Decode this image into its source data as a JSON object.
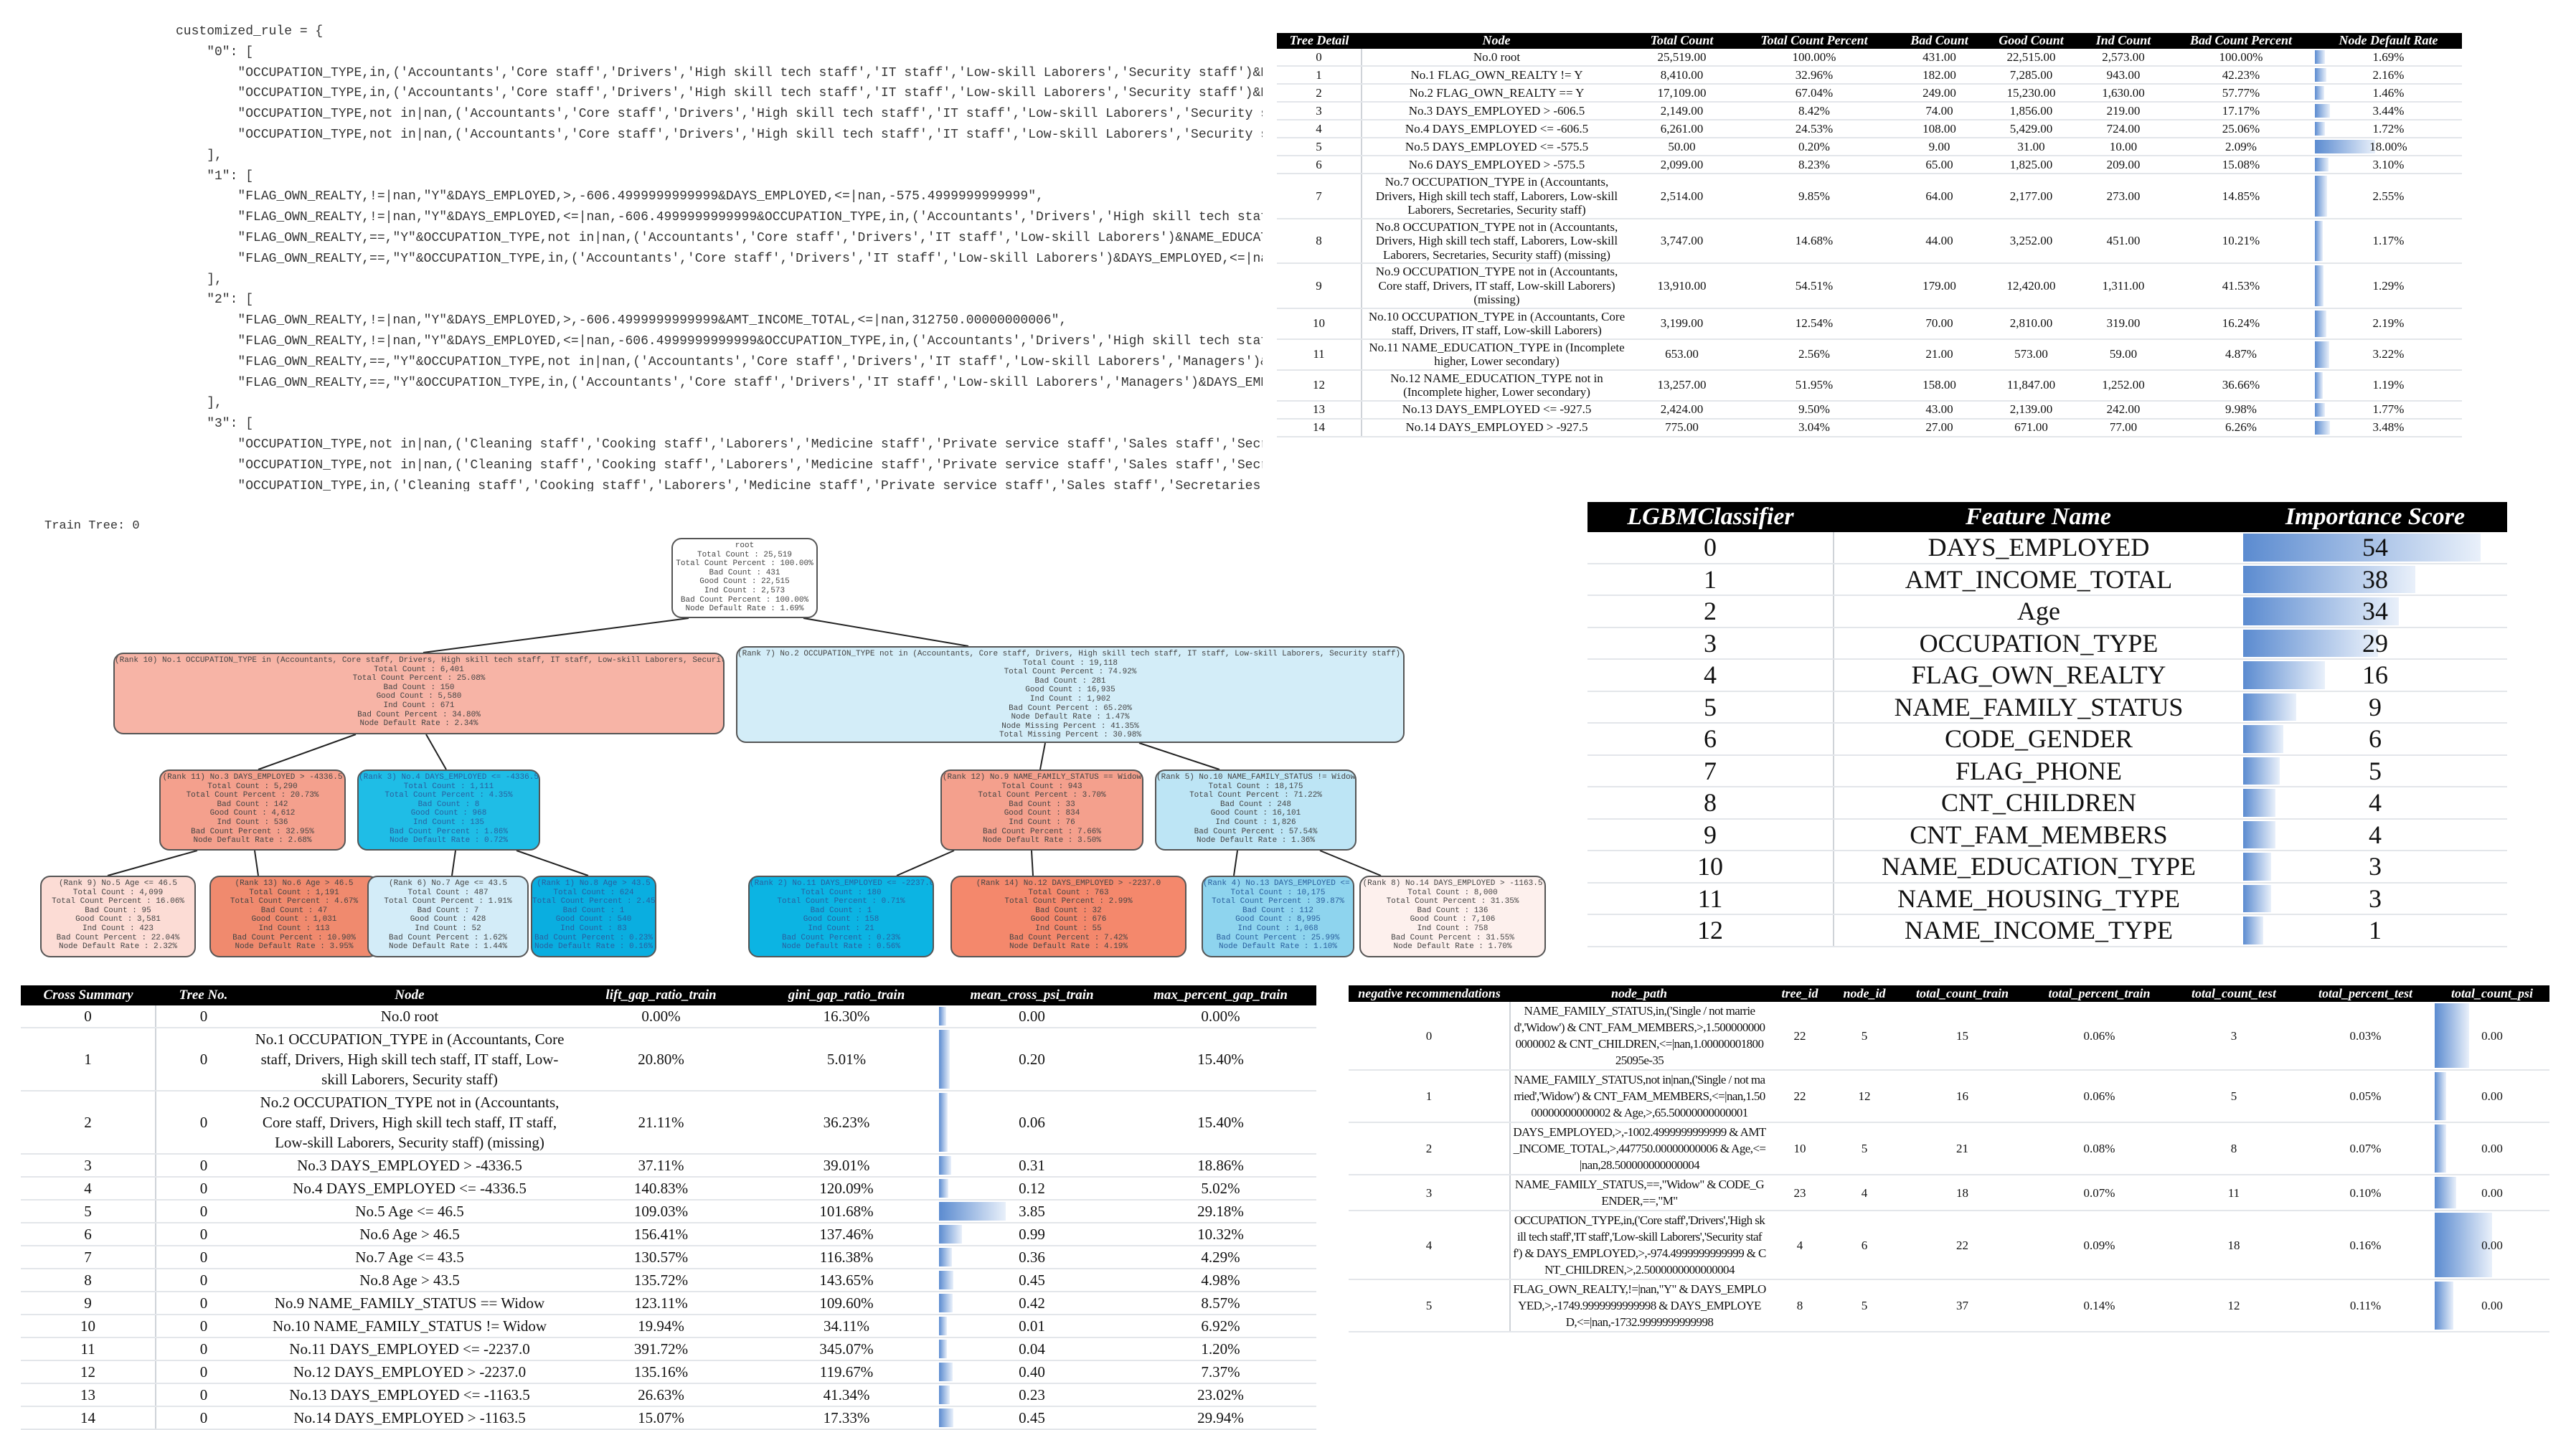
{
  "code": {
    "lines": [
      "customized_rule = {",
      "    \"0\": [",
      "        \"OCCUPATION_TYPE,in,('Accountants','Core staff','Drivers','High skill tech staff','IT staff','Low-skill Laborers','Security staff')&DA",
      "        \"OCCUPATION_TYPE,in,('Accountants','Core staff','Drivers','High skill tech staff','IT staff','Low-skill Laborers','Security staff')&DA",
      "        \"OCCUPATION_TYPE,not in|nan,('Accountants','Core staff','Drivers','High skill tech staff','IT staff','Low-skill Laborers','Security st",
      "        \"OCCUPATION_TYPE,not in|nan,('Accountants','Core staff','Drivers','High skill tech staff','IT staff','Low-skill Laborers','Security st",
      "    ],",
      "    \"1\": [",
      "        \"FLAG_OWN_REALTY,!=|nan,\"Y\"&DAYS_EMPLOYED,>,-606.4999999999999&DAYS_EMPLOYED,<=|nan,-575.4999999999999\",",
      "        \"FLAG_OWN_REALTY,!=|nan,\"Y\"&DAYS_EMPLOYED,<=|nan,-606.4999999999999&OCCUPATION_TYPE,in,('Accountants','Drivers','High skill tech staf",
      "        \"FLAG_OWN_REALTY,==,\"Y\"&OCCUPATION_TYPE,not in|nan,('Accountants','Core staff','Drivers','IT staff','Low-skill Laborers')&NAME_EDUCATI",
      "        \"FLAG_OWN_REALTY,==,\"Y\"&OCCUPATION_TYPE,in,('Accountants','Core staff','Drivers','IT staff','Low-skill Laborers')&DAYS_EMPLOYED,<=|nan",
      "    ],",
      "    \"2\": [",
      "        \"FLAG_OWN_REALTY,!=|nan,\"Y\"&DAYS_EMPLOYED,>,-606.4999999999999&AMT_INCOME_TOTAL,<=|nan,312750.00000000006\",",
      "        \"FLAG_OWN_REALTY,!=|nan,\"Y\"&DAYS_EMPLOYED,<=|nan,-606.4999999999999&OCCUPATION_TYPE,in,('Accountants','Drivers','High skill tech staf",
      "        \"FLAG_OWN_REALTY,==,\"Y\"&OCCUPATION_TYPE,not in|nan,('Accountants','Core staff','Drivers','IT staff','Low-skill Laborers','Managers')&N",
      "        \"FLAG_OWN_REALTY,==,\"Y\"&OCCUPATION_TYPE,in,('Accountants','Core staff','Drivers','IT staff','Low-skill Laborers','Managers')&DAYS_EMPL",
      "    ],",
      "    \"3\": [",
      "        \"OCCUPATION_TYPE,not in|nan,('Cleaning staff','Cooking staff','Laborers','Medicine staff','Private service staff','Sales staff','Secre",
      "        \"OCCUPATION_TYPE,not in|nan,('Cleaning staff','Cooking staff','Laborers','Medicine staff','Private service staff','Sales staff','Secre",
      "        \"OCCUPATION_TYPE,in,('Cleaning staff','Cooking staff','Laborers','Medicine staff','Private service staff','Sales staff','Secretaries',",
      "        \"OCCUPATION_TYPE,in,('Cleaning staff','Cooking staff','Laborers','Medicine staff','Private service staff','Sales staff','Secretaries',",
      "    ],"
    ]
  },
  "tree_detail": {
    "headers": [
      "Tree Detail",
      "Node",
      "Total Count",
      "Total Count Percent",
      "Bad Count",
      "Good Count",
      "Ind Count",
      "Bad Count Percent",
      "Node Default Rate"
    ],
    "rows": [
      [
        "0",
        "No.0 root",
        "25,519.00",
        "100.00%",
        "431.00",
        "22,515.00",
        "2,573.00",
        "100.00%",
        "1.69%"
      ],
      [
        "1",
        "No.1 FLAG_OWN_REALTY != Y",
        "8,410.00",
        "32.96%",
        "182.00",
        "7,285.00",
        "943.00",
        "42.23%",
        "2.16%"
      ],
      [
        "2",
        "No.2 FLAG_OWN_REALTY == Y",
        "17,109.00",
        "67.04%",
        "249.00",
        "15,230.00",
        "1,630.00",
        "57.77%",
        "1.46%"
      ],
      [
        "3",
        "No.3 DAYS_EMPLOYED > -606.5",
        "2,149.00",
        "8.42%",
        "74.00",
        "1,856.00",
        "219.00",
        "17.17%",
        "3.44%"
      ],
      [
        "4",
        "No.4 DAYS_EMPLOYED <= -606.5",
        "6,261.00",
        "24.53%",
        "108.00",
        "5,429.00",
        "724.00",
        "25.06%",
        "1.72%"
      ],
      [
        "5",
        "No.5 DAYS_EMPLOYED <= -575.5",
        "50.00",
        "0.20%",
        "9.00",
        "31.00",
        "10.00",
        "2.09%",
        "18.00%"
      ],
      [
        "6",
        "No.6 DAYS_EMPLOYED > -575.5",
        "2,099.00",
        "8.23%",
        "65.00",
        "1,825.00",
        "209.00",
        "15.08%",
        "3.10%"
      ],
      [
        "7",
        "No.7 OCCUPATION_TYPE in (Accountants, Drivers, High skill tech staff, Laborers, Low-skill Laborers, Secretaries, Security staff)",
        "2,514.00",
        "9.85%",
        "64.00",
        "2,177.00",
        "273.00",
        "14.85%",
        "2.55%"
      ],
      [
        "8",
        "No.8 OCCUPATION_TYPE not in (Accountants, Drivers, High skill tech staff, Laborers, Low-skill Laborers, Secretaries, Security staff) (missing)",
        "3,747.00",
        "14.68%",
        "44.00",
        "3,252.00",
        "451.00",
        "10.21%",
        "1.17%"
      ],
      [
        "9",
        "No.9 OCCUPATION_TYPE not in (Accountants, Core staff, Drivers, IT staff, Low-skill Laborers) (missing)",
        "13,910.00",
        "54.51%",
        "179.00",
        "12,420.00",
        "1,311.00",
        "41.53%",
        "1.29%"
      ],
      [
        "10",
        "No.10 OCCUPATION_TYPE in (Accountants, Core staff, Drivers, IT staff, Low-skill Laborers)",
        "3,199.00",
        "12.54%",
        "70.00",
        "2,810.00",
        "319.00",
        "16.24%",
        "2.19%"
      ],
      [
        "11",
        "No.11 NAME_EDUCATION_TYPE in (Incomplete higher, Lower secondary)",
        "653.00",
        "2.56%",
        "21.00",
        "573.00",
        "59.00",
        "4.87%",
        "3.22%"
      ],
      [
        "12",
        "No.12 NAME_EDUCATION_TYPE not in (Incomplete higher, Lower secondary)",
        "13,257.00",
        "51.95%",
        "158.00",
        "11,847.00",
        "1,252.00",
        "36.66%",
        "1.19%"
      ],
      [
        "13",
        "No.13 DAYS_EMPLOYED <= -927.5",
        "2,424.00",
        "9.50%",
        "43.00",
        "2,139.00",
        "242.00",
        "9.98%",
        "1.77%"
      ],
      [
        "14",
        "No.14 DAYS_EMPLOYED > -927.5",
        "775.00",
        "3.04%",
        "27.00",
        "671.00",
        "77.00",
        "6.26%",
        "3.48%"
      ]
    ]
  },
  "train_tree_label": "Train Tree: 0",
  "tree_nodes": {
    "n0": {
      "fill": "#ffffff",
      "lines": [
        "root",
        "Total Count : 25,519",
        "Total Count Percent : 100.00%",
        "Bad Count : 431",
        "Good Count : 22,515",
        "Ind Count : 2,573",
        "Bad Count Percent : 100.00%",
        "Node Default Rate : 1.69%"
      ]
    },
    "n1": {
      "fill": "#f7b4a6",
      "lines": [
        "(Rank 10) No.1 OCCUPATION_TYPE in (Accountants, Core staff, Drivers, High skill tech staff, IT staff, Low-skill Laborers, Security staff)",
        "Total Count : 6,401",
        "Total Count Percent : 25.08%",
        "Bad Count : 150",
        "Good Count : 5,580",
        "Ind Count : 671",
        "Bad Count Percent : 34.80%",
        "Node Default Rate : 2.34%"
      ]
    },
    "n2": {
      "fill": "#d3edf8",
      "lines": [
        "(Rank 7) No.2 OCCUPATION_TYPE not in (Accountants, Core staff, Drivers, High skill tech staff, IT staff, Low-skill Laborers, Security staff) (missing)",
        "Total Count : 19,118",
        "Total Count Percent : 74.92%",
        "Bad Count : 281",
        "Good Count : 16,935",
        "Ind Count : 1,902",
        "Bad Count Percent : 65.20%",
        "Node Default Rate : 1.47%",
        "Node Missing Percent : 41.35%",
        "Total Missing Percent : 30.98%"
      ]
    },
    "n3": {
      "fill": "#f4a08d",
      "lines": [
        "(Rank 11) No.3 DAYS_EMPLOYED > -4336.5",
        "Total Count : 5,290",
        "Total Count Percent : 20.73%",
        "Bad Count : 142",
        "Good Count : 4,612",
        "Ind Count : 536",
        "Bad Count Percent : 32.95%",
        "Node Default Rate : 2.68%"
      ]
    },
    "n4": {
      "fill": "#1fbde6",
      "lines": [
        "(Rank 3) No.4 DAYS_EMPLOYED <= -4336.5",
        "Total Count : 1,111",
        "Total Count Percent : 4.35%",
        "Bad Count : 8",
        "Good Count : 968",
        "Ind Count : 135",
        "Bad Count Percent : 1.86%",
        "Node Default Rate : 0.72%"
      ]
    },
    "n5": {
      "fill": "#fcdcd5",
      "lines": [
        "(Rank 9) No.5 Age <= 46.5",
        "Total Count : 4,099",
        "Total Count Percent : 16.06%",
        "Bad Count : 95",
        "Good Count : 3,581",
        "Ind Count : 423",
        "Bad Count Percent : 22.04%",
        "Node Default Rate : 2.32%"
      ]
    },
    "n6": {
      "fill": "#f08a6e",
      "lines": [
        "(Rank 13) No.6 Age > 46.5",
        "Total Count : 1,191",
        "Total Count Percent : 4.67%",
        "Bad Count : 47",
        "Good Count : 1,031",
        "Ind Count : 113",
        "Bad Count Percent : 10.90%",
        "Node Default Rate : 3.95%"
      ]
    },
    "n7": {
      "fill": "#d3ecf8",
      "lines": [
        "(Rank 6) No.7 Age <= 43.5",
        "Total Count : 487",
        "Total Count Percent : 1.91%",
        "Bad Count : 7",
        "Good Count : 428",
        "Ind Count : 52",
        "Bad Count Percent : 1.62%",
        "Node Default Rate : 1.44%"
      ]
    },
    "n8": {
      "fill": "#0aaee0",
      "lines": [
        "(Rank 1) No.8 Age > 43.5",
        "Total Count : 624",
        "Total Count Percent : 2.45%",
        "Bad Count : 1",
        "Good Count : 540",
        "Ind Count : 83",
        "Bad Count Percent : 0.23%",
        "Node Default Rate : 0.16%"
      ]
    },
    "n9": {
      "fill": "#f4a08d",
      "lines": [
        "(Rank 12) No.9 NAME_FAMILY_STATUS == Widow",
        "Total Count : 943",
        "Total Count Percent : 3.70%",
        "Bad Count : 33",
        "Good Count : 834",
        "Ind Count : 76",
        "Bad Count Percent : 7.66%",
        "Node Default Rate : 3.50%"
      ]
    },
    "n10": {
      "fill": "#bde5f5",
      "lines": [
        "(Rank 5) No.10 NAME_FAMILY_STATUS != Widow",
        "Total Count : 18,175",
        "Total Count Percent : 71.22%",
        "Bad Count : 248",
        "Good Count : 16,101",
        "Ind Count : 1,826",
        "Bad Count Percent : 57.54%",
        "Node Default Rate : 1.36%"
      ]
    },
    "n11": {
      "fill": "#0cb4e3",
      "lines": [
        "(Rank 2) No.11 DAYS_EMPLOYED <= -2237.0",
        "Total Count : 180",
        "Total Count Percent : 0.71%",
        "Bad Count : 1",
        "Good Count : 158",
        "Ind Count : 21",
        "Bad Count Percent : 0.23%",
        "Node Default Rate : 0.56%"
      ]
    },
    "n12": {
      "fill": "#f4886c",
      "lines": [
        "(Rank 14) No.12 DAYS_EMPLOYED > -2237.0",
        "Total Count : 763",
        "Total Count Percent : 2.99%",
        "Bad Count : 32",
        "Good Count : 676",
        "Ind Count : 55",
        "Bad Count Percent : 7.42%",
        "Node Default Rate : 4.19%"
      ]
    },
    "n13": {
      "fill": "#8ed4ee",
      "lines": [
        "(Rank 4) No.13 DAYS_EMPLOYED <= -1163.5",
        "Total Count : 10,175",
        "Total Count Percent : 39.87%",
        "Bad Count : 112",
        "Good Count : 8,995",
        "Ind Count : 1,068",
        "Bad Count Percent : 25.99%",
        "Node Default Rate : 1.10%"
      ]
    },
    "n14": {
      "fill": "#fdf0ed",
      "lines": [
        "(Rank 8) No.14 DAYS_EMPLOYED > -1163.5",
        "Total Count : 8,000",
        "Total Count Percent : 31.35%",
        "Bad Count : 136",
        "Good Count : 7,106",
        "Ind Count : 758",
        "Bad Count Percent : 31.55%",
        "Node Default Rate : 1.70%"
      ]
    }
  },
  "importance": {
    "headers": [
      "LGBMClassifier",
      "Feature Name",
      "Importance Score"
    ],
    "rows": [
      [
        "0",
        "DAYS_EMPLOYED",
        "54"
      ],
      [
        "1",
        "AMT_INCOME_TOTAL",
        "38"
      ],
      [
        "2",
        "Age",
        "34"
      ],
      [
        "3",
        "OCCUPATION_TYPE",
        "29"
      ],
      [
        "4",
        "FLAG_OWN_REALTY",
        "16"
      ],
      [
        "5",
        "NAME_FAMILY_STATUS",
        "9"
      ],
      [
        "6",
        "CODE_GENDER",
        "6"
      ],
      [
        "7",
        "FLAG_PHONE",
        "5"
      ],
      [
        "8",
        "CNT_CHILDREN",
        "4"
      ],
      [
        "9",
        "CNT_FAM_MEMBERS",
        "4"
      ],
      [
        "10",
        "NAME_EDUCATION_TYPE",
        "3"
      ],
      [
        "11",
        "NAME_HOUSING_TYPE",
        "3"
      ],
      [
        "12",
        "NAME_INCOME_TYPE",
        "1"
      ]
    ]
  },
  "cross_summary": {
    "headers": [
      "Cross Summary",
      "Tree No.",
      "Node",
      "lift_gap_ratio_train",
      "gini_gap_ratio_train",
      "mean_cross_psi_train",
      "max_percent_gap_train"
    ],
    "rows": [
      [
        "0",
        "0",
        "No.0 root",
        "0.00%",
        "16.30%",
        "0.00",
        "0.00%"
      ],
      [
        "1",
        "0",
        "No.1 OCCUPATION_TYPE in (Accountants, Core staff, Drivers, High skill tech staff, IT staff, Low-skill Laborers, Security staff)",
        "20.80%",
        "5.01%",
        "0.20",
        "15.40%"
      ],
      [
        "2",
        "0",
        "No.2 OCCUPATION_TYPE not in (Accountants, Core staff, Drivers, High skill tech staff, IT staff, Low-skill Laborers, Security staff) (missing)",
        "21.11%",
        "36.23%",
        "0.06",
        "15.40%"
      ],
      [
        "3",
        "0",
        "No.3 DAYS_EMPLOYED > -4336.5",
        "37.11%",
        "39.01%",
        "0.31",
        "18.86%"
      ],
      [
        "4",
        "0",
        "No.4 DAYS_EMPLOYED <= -4336.5",
        "140.83%",
        "120.09%",
        "0.12",
        "5.02%"
      ],
      [
        "5",
        "0",
        "No.5 Age <= 46.5",
        "109.03%",
        "101.68%",
        "3.85",
        "29.18%"
      ],
      [
        "6",
        "0",
        "No.6 Age > 46.5",
        "156.41%",
        "137.46%",
        "0.99",
        "10.32%"
      ],
      [
        "7",
        "0",
        "No.7 Age <= 43.5",
        "130.57%",
        "116.38%",
        "0.36",
        "4.29%"
      ],
      [
        "8",
        "0",
        "No.8 Age > 43.5",
        "135.72%",
        "143.65%",
        "0.45",
        "4.98%"
      ],
      [
        "9",
        "0",
        "No.9 NAME_FAMILY_STATUS == Widow",
        "123.11%",
        "109.60%",
        "0.42",
        "8.57%"
      ],
      [
        "10",
        "0",
        "No.10 NAME_FAMILY_STATUS != Widow",
        "19.94%",
        "34.11%",
        "0.01",
        "6.92%"
      ],
      [
        "11",
        "0",
        "No.11 DAYS_EMPLOYED <= -2237.0",
        "391.72%",
        "345.07%",
        "0.04",
        "1.20%"
      ],
      [
        "12",
        "0",
        "No.12 DAYS_EMPLOYED > -2237.0",
        "135.16%",
        "119.67%",
        "0.40",
        "7.37%"
      ],
      [
        "13",
        "0",
        "No.13 DAYS_EMPLOYED <= -1163.5",
        "26.63%",
        "41.34%",
        "0.23",
        "23.02%"
      ],
      [
        "14",
        "0",
        "No.14 DAYS_EMPLOYED > -1163.5",
        "15.07%",
        "17.33%",
        "0.45",
        "29.94%"
      ]
    ]
  },
  "negative_recommendations": {
    "headers": [
      "negative recommendations",
      "node_path",
      "tree_id",
      "node_id",
      "total_count_train",
      "total_percent_train",
      "total_count_test",
      "total_percent_test",
      "total_count_psi"
    ],
    "rows": [
      [
        "0",
        "NAME_FAMILY_STATUS,in,('Single / not married','Widow') & CNT_FAM_MEMBERS,>,1.5000000000000002 & CNT_CHILDREN,<=|nan,1.0000000180025095e-35",
        "22",
        "5",
        "15",
        "0.06%",
        "3",
        "0.03%",
        "0.00"
      ],
      [
        "1",
        "NAME_FAMILY_STATUS,not in|nan,('Single / not married','Widow') & CNT_FAM_MEMBERS,<=|nan,1.5000000000000002 & Age,>,65.50000000000001",
        "22",
        "12",
        "16",
        "0.06%",
        "5",
        "0.05%",
        "0.00"
      ],
      [
        "2",
        "DAYS_EMPLOYED,>,-1002.4999999999999 & AMT_INCOME_TOTAL,>,447750.00000000006 & Age,<=|nan,28.500000000000004",
        "10",
        "5",
        "21",
        "0.08%",
        "8",
        "0.07%",
        "0.00"
      ],
      [
        "3",
        "NAME_FAMILY_STATUS,==,\"Widow\" & CODE_GENDER,==,\"M\"",
        "23",
        "4",
        "18",
        "0.07%",
        "11",
        "0.10%",
        "0.00"
      ],
      [
        "4",
        "OCCUPATION_TYPE,in,('Core staff','Drivers','High skill tech staff','IT staff','Low-skill Laborers','Security staff') & DAYS_EMPLOYED,>,-974.4999999999999 & CNT_CHILDREN,>,2.5000000000000004",
        "4",
        "6",
        "22",
        "0.09%",
        "18",
        "0.16%",
        "0.00"
      ],
      [
        "5",
        "FLAG_OWN_REALTY,!=|nan,\"Y\" & DAYS_EMPLOYED,>,-1749.9999999999998 & DAYS_EMPLOYED,<=|nan,-1732.9999999999998",
        "8",
        "5",
        "37",
        "0.14%",
        "12",
        "0.11%",
        "0.00"
      ]
    ],
    "psi_bar_fraction": [
      0.3,
      0.1,
      0.1,
      0.19,
      0.5,
      0.16
    ]
  }
}
